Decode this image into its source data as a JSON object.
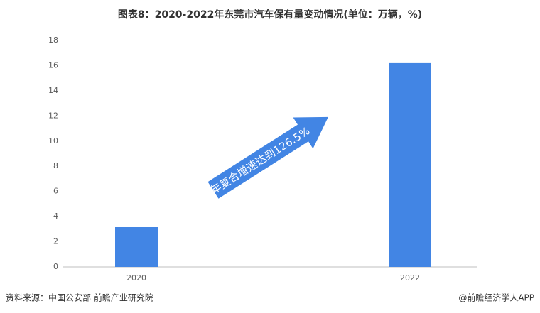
{
  "chart_data": {
    "type": "bar",
    "title": "图表8：2020-2022年东莞市汽车保有量变动情况(单位：万辆，%)",
    "categories": [
      "2020",
      "2022"
    ],
    "values": [
      3.16,
      16.2
    ],
    "color": "#4285e4",
    "ylim": [
      0,
      18
    ],
    "yticks": [
      0,
      2,
      4,
      6,
      8,
      10,
      12,
      14,
      16,
      18
    ],
    "grid": false,
    "annotation": "年复合增速达到126.5%",
    "source": "资料来源：中国公安部 前瞻产业研究院",
    "footer": "@前瞻经济学人APP"
  }
}
